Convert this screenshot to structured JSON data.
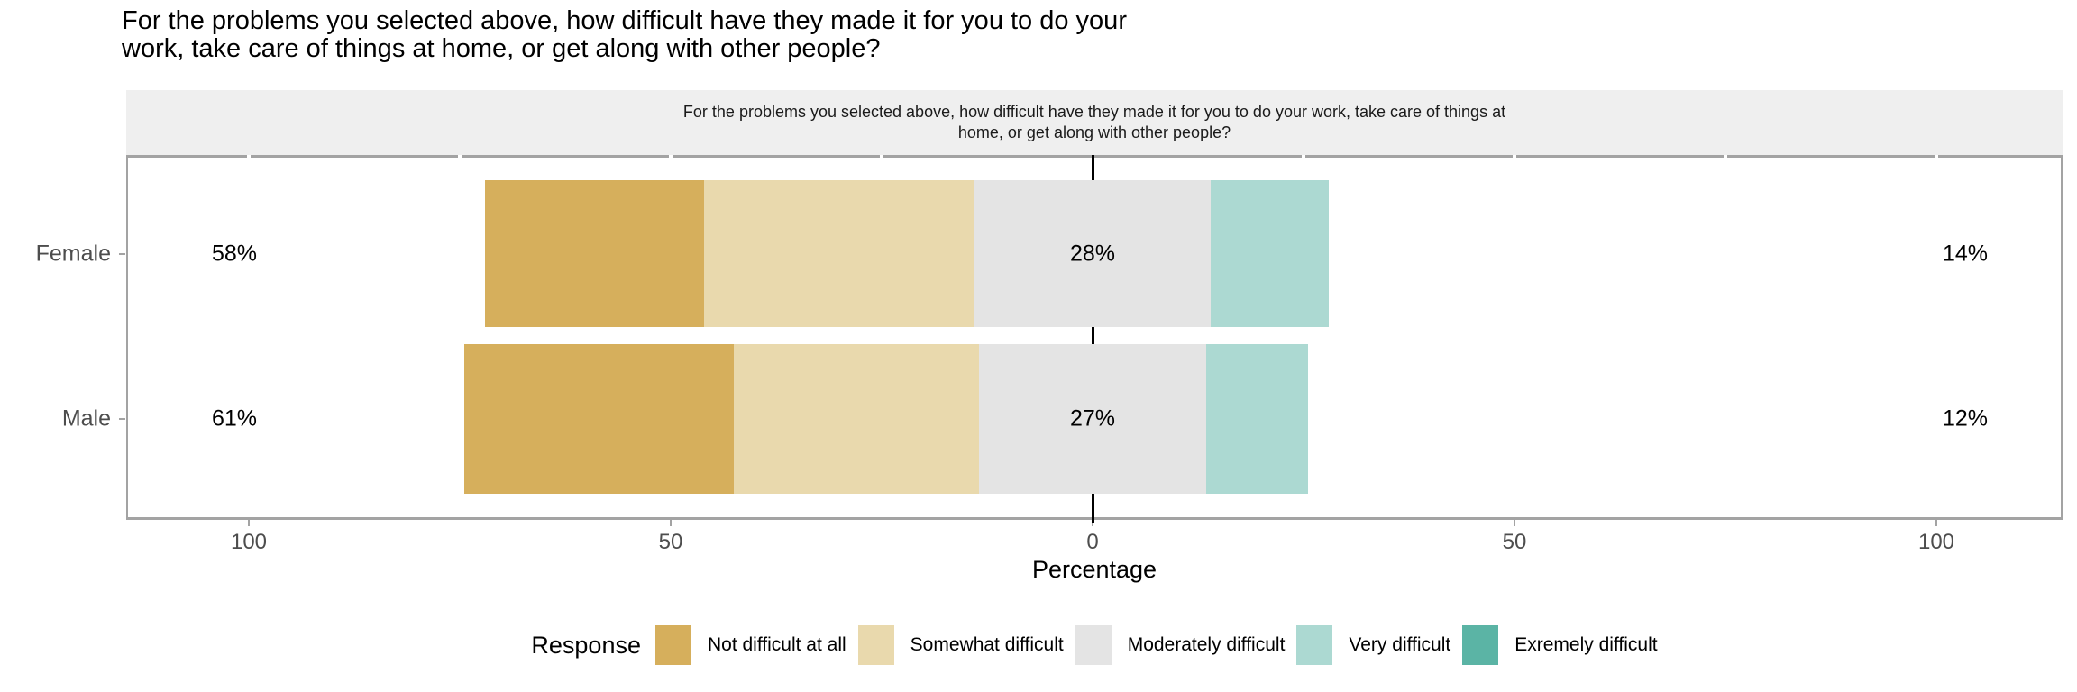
{
  "title": {
    "line1": "For the problems you selected above, how difficult have they made it for you to do your",
    "line2": "work, take care of things at home, or get along with other people?"
  },
  "facet_strip": {
    "line1": "For the problems you selected above, how difficult have they made it for you to do your work, take care of things at",
    "line2": "home, or get along with other people?"
  },
  "chart_data": {
    "type": "diverging_stacked_bar",
    "title": "For the problems you selected above, how difficult have they made it for you to do your work, take care of things at home, or get along with other people?",
    "categories": [
      "Female",
      "Male"
    ],
    "xlabel": "Percentage",
    "x_ticks": [
      -100,
      -50,
      0,
      50,
      100
    ],
    "x_tick_labels": [
      "100",
      "50",
      "0",
      "50",
      "100"
    ],
    "xlim": [
      -114.5,
      115
    ],
    "grid": false,
    "legend_title": "Response",
    "legend_position": "bottom",
    "series": [
      {
        "name": "Not difficult at all",
        "color": "#D6AF5C",
        "values": [
          26,
          32
        ]
      },
      {
        "name": "Somewhat difficult",
        "color": "#E9D9AD",
        "values": [
          32,
          29
        ]
      },
      {
        "name": "Moderately difficult",
        "color": "#E4E4E4",
        "values": [
          28,
          27
        ]
      },
      {
        "name": "Very difficult",
        "color": "#ACD9D2",
        "values": [
          14,
          12
        ]
      },
      {
        "name": "Exremely difficult",
        "color": "#5BB4A5",
        "values": [
          0,
          0
        ]
      }
    ],
    "row_labels": [
      {
        "category": "Female",
        "left": "58%",
        "center": "28%",
        "right": "14%"
      },
      {
        "category": "Male",
        "left": "61%",
        "center": "27%",
        "right": "12%"
      }
    ],
    "label_rule": "left label = Not difficult at all + Somewhat difficult; center label = Moderately difficult centered on 0; right label = Very difficult + Exremely difficult",
    "zero_line_color": "#000000",
    "panel_border_color": "#A3A3A3",
    "strip_background": "#EFEFEF",
    "axis_text_color": "#4D4D4D"
  }
}
